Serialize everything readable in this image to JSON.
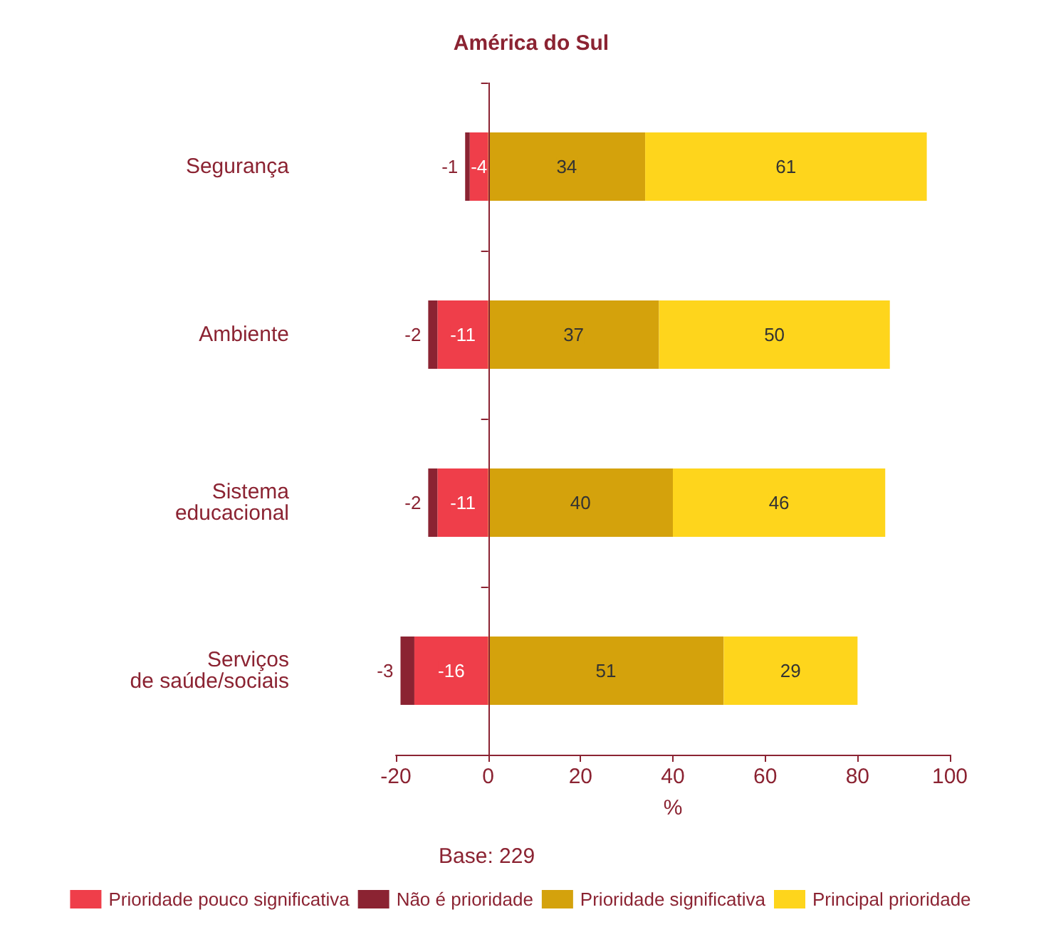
{
  "chart_data": {
    "type": "bar",
    "orientation": "horizontal",
    "stacked": true,
    "title": "América do Sul",
    "xlabel": "%",
    "categories": [
      "Segurança",
      "Ambiente",
      "Sistema\neducacional",
      "Serviços\nde saúde/sociais"
    ],
    "series": [
      {
        "name": "Prioridade pouco significativa",
        "color": "#ef3e4a",
        "values": [
          -4,
          -11,
          -11,
          -16
        ]
      },
      {
        "name": "Não é prioridade",
        "color": "#8b2332",
        "values": [
          -1,
          -2,
          -2,
          -3
        ]
      },
      {
        "name": "Prioridade significativa",
        "color": "#d4a20c",
        "values": [
          34,
          37,
          40,
          51
        ]
      },
      {
        "name": "Principal prioridade",
        "color": "#fed51c",
        "values": [
          61,
          50,
          46,
          29
        ]
      }
    ],
    "xlim": [
      -20,
      100
    ],
    "xticks": [
      -20,
      0,
      20,
      40,
      60,
      80,
      100
    ],
    "grid": false,
    "legend": "bottom",
    "data_labels": true,
    "ref_lines": [
      {
        "axis": "x",
        "value": 0,
        "color": "#8b2332"
      }
    ],
    "annotations": [
      "Base: 229"
    ]
  }
}
